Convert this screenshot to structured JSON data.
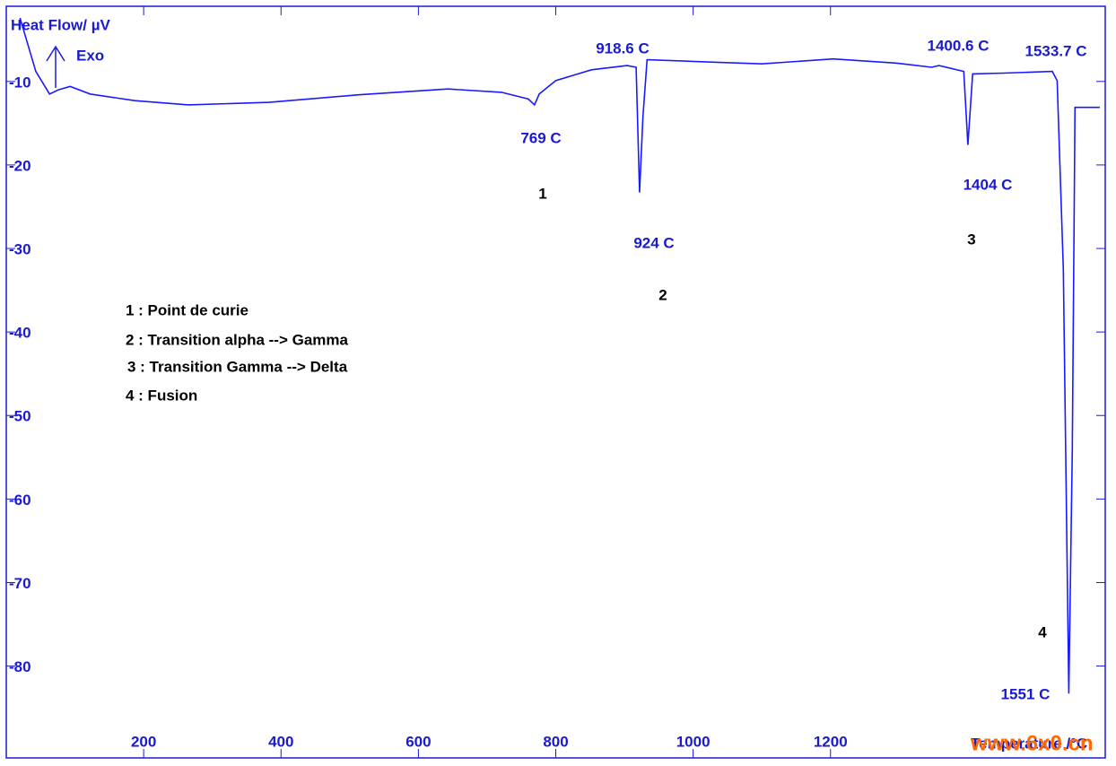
{
  "chart_data": {
    "type": "line",
    "y_label": "Heat Flow/ µV",
    "exo_label": "Exo",
    "x_label": "Temperature /°C",
    "watermark": "www.6x0.cn",
    "color": "#1a1aff",
    "axis_color": "#1a1ad0",
    "xlim": [
      0,
      1600
    ],
    "ylim": [
      -91,
      -1
    ],
    "xticks": [
      200,
      400,
      600,
      800,
      1000,
      1200
    ],
    "yticks": [
      -10,
      -20,
      -30,
      -40,
      -50,
      -60,
      -70,
      -80
    ],
    "x": [
      20,
      43,
      63,
      76,
      93,
      122,
      187,
      265,
      383,
      513,
      643,
      721,
      760,
      769,
      776,
      800,
      852,
      904,
      917,
      922,
      927,
      933,
      1034,
      1100,
      1204,
      1295,
      1347,
      1358,
      1394,
      1400,
      1407,
      1452,
      1523,
      1530,
      1539,
      1547,
      1552,
      1556,
      1571,
      1592
    ],
    "values": [
      -2.4,
      -8.8,
      -11.5,
      -11,
      -10.6,
      -11.5,
      -12.3,
      -12.8,
      -12.5,
      -11.6,
      -10.9,
      -11.3,
      -12.1,
      -12.8,
      -11.5,
      -9.9,
      -8.6,
      -8.1,
      -8.3,
      -23.3,
      -14.2,
      -7.4,
      -7.7,
      -7.9,
      -7.3,
      -7.8,
      -8.3,
      -8.1,
      -8.8,
      -17.6,
      -9.1,
      -9,
      -8.8,
      -9.9,
      -32.5,
      -83.3,
      -54,
      -13.1,
      -13.1,
      -13.1
    ],
    "annotations": [
      "918.6 C",
      "769 C",
      "1",
      "924 C",
      "2",
      "1400.6 C",
      "1533.7 C",
      "1404 C",
      "3",
      "4",
      "1551 C"
    ],
    "legend": [
      "1 : Point de curie",
      "2 : Transition alpha --> Gamma",
      "3 : Transition Gamma --> Delta",
      "4 : Fusion"
    ]
  }
}
